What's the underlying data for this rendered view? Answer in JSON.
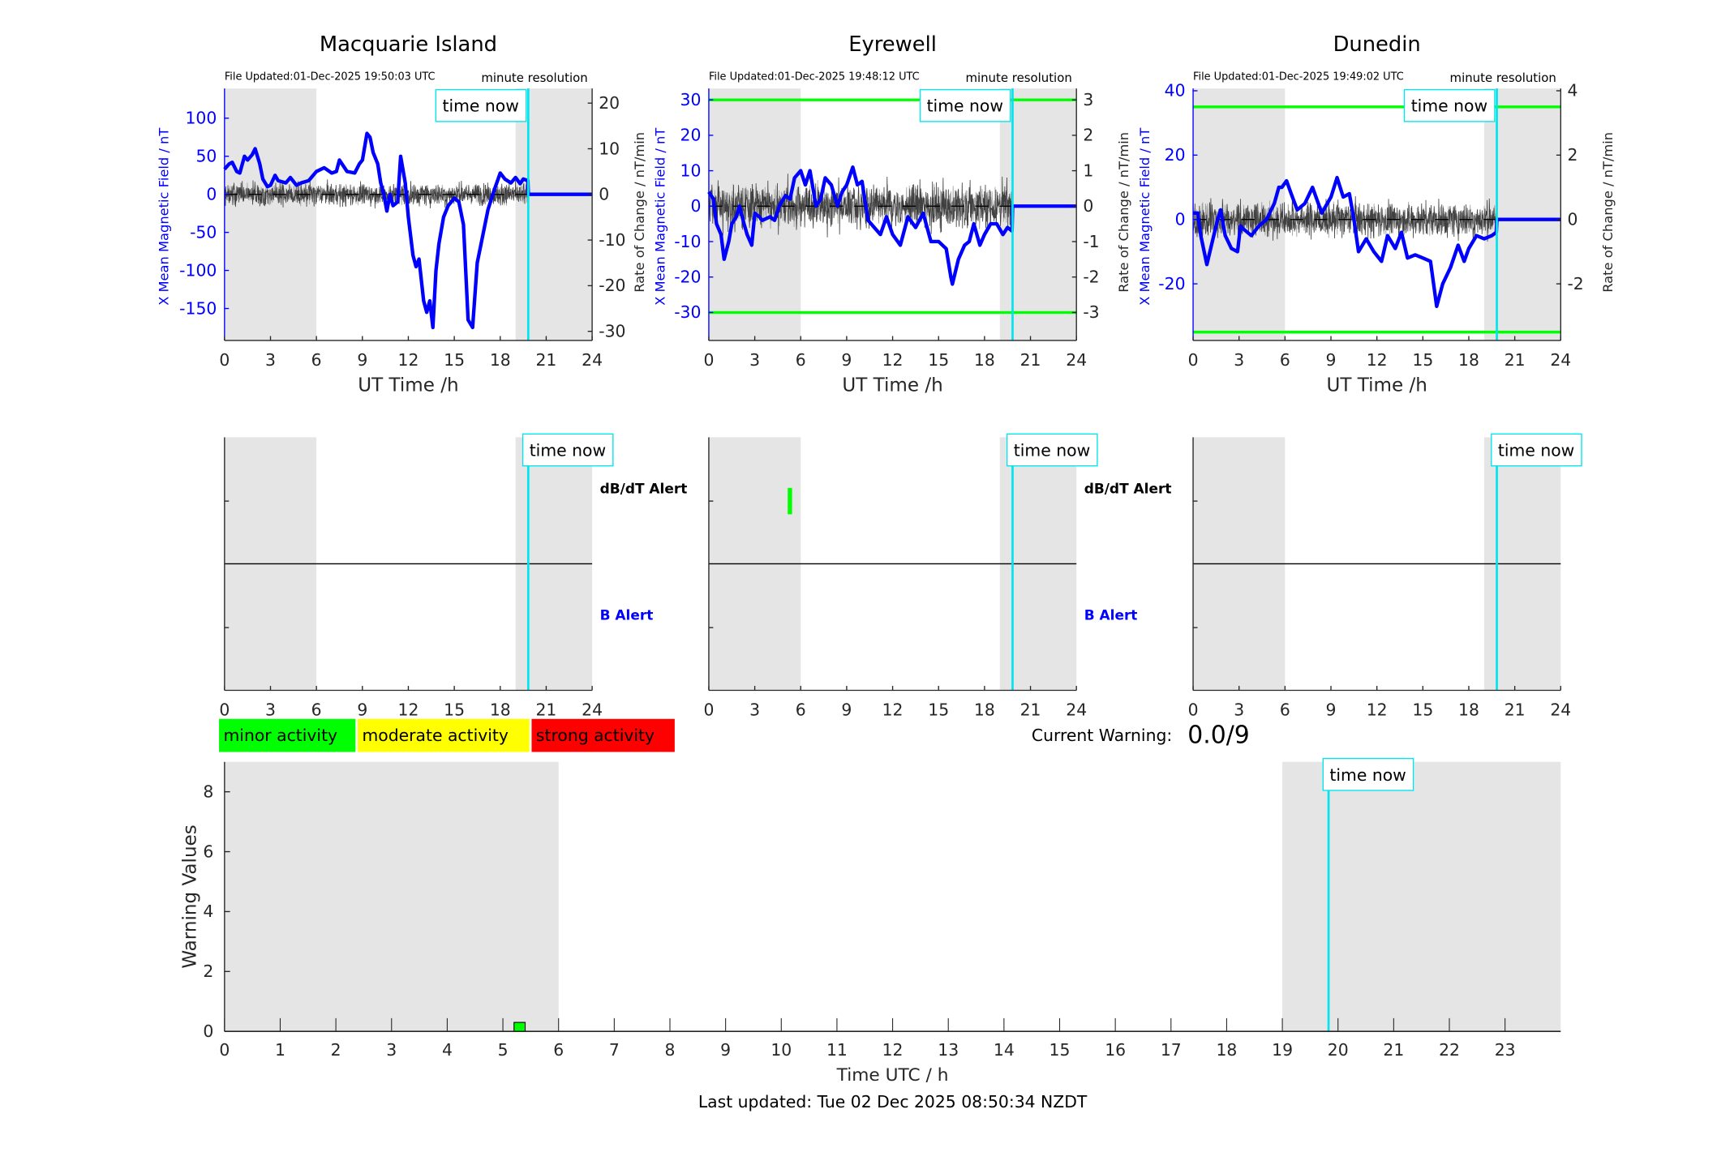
{
  "chart_data": [
    {
      "type": "line",
      "title": "Macquarie Island",
      "file_updated": "File Updated:01-Dec-2025 19:50:03 UTC",
      "resolution": "minute resolution",
      "time_now_label": "time now",
      "time_now": 19.83,
      "xlabel": "UT Time /h",
      "ylabel": "X Mean Magnetic Field / nT",
      "y2label": "Rate of Change / nT/min",
      "xlim": [
        0,
        24
      ],
      "xticks": [
        0,
        3,
        6,
        9,
        12,
        15,
        18,
        21,
        24
      ],
      "ylim": [
        -192,
        139
      ],
      "yticks": [
        -150,
        -100,
        -50,
        0,
        50,
        100
      ],
      "y2lim": [
        -32,
        23.2
      ],
      "y2ticks": [
        -30,
        -20,
        -10,
        0,
        10,
        20
      ],
      "night_shading": [
        [
          0,
          6
        ],
        [
          19,
          24
        ]
      ],
      "thresholds": [],
      "rate_noise_amplitude": 3.2,
      "series": [
        {
          "name": "X Mean Magnetic Field",
          "color": "#0000ff",
          "points": [
            [
              0,
              33
            ],
            [
              0.3,
              40
            ],
            [
              0.5,
              42
            ],
            [
              0.8,
              30
            ],
            [
              1,
              28
            ],
            [
              1.3,
              50
            ],
            [
              1.5,
              45
            ],
            [
              1.8,
              52
            ],
            [
              2,
              60
            ],
            [
              2.3,
              40
            ],
            [
              2.5,
              20
            ],
            [
              2.8,
              10
            ],
            [
              3,
              12
            ],
            [
              3.3,
              25
            ],
            [
              3.5,
              18
            ],
            [
              4,
              15
            ],
            [
              4.3,
              22
            ],
            [
              4.7,
              12
            ],
            [
              5,
              15
            ],
            [
              5.5,
              18
            ],
            [
              6,
              30
            ],
            [
              6.5,
              35
            ],
            [
              7,
              28
            ],
            [
              7.3,
              30
            ],
            [
              7.5,
              45
            ],
            [
              8,
              30
            ],
            [
              8.5,
              28
            ],
            [
              8.8,
              40
            ],
            [
              9,
              45
            ],
            [
              9.3,
              80
            ],
            [
              9.5,
              75
            ],
            [
              9.7,
              55
            ],
            [
              10,
              40
            ],
            [
              10.2,
              15
            ],
            [
              10.4,
              0
            ],
            [
              10.6,
              -22
            ],
            [
              10.8,
              0
            ],
            [
              11,
              -15
            ],
            [
              11.3,
              -10
            ],
            [
              11.5,
              50
            ],
            [
              11.8,
              15
            ],
            [
              12,
              -30
            ],
            [
              12.3,
              -80
            ],
            [
              12.5,
              -95
            ],
            [
              12.7,
              -85
            ],
            [
              13,
              -140
            ],
            [
              13.2,
              -155
            ],
            [
              13.4,
              -140
            ],
            [
              13.6,
              -175
            ],
            [
              13.8,
              -100
            ],
            [
              14,
              -65
            ],
            [
              14.3,
              -30
            ],
            [
              14.6,
              -15
            ],
            [
              15,
              -5
            ],
            [
              15.3,
              -10
            ],
            [
              15.6,
              -40
            ],
            [
              15.9,
              -165
            ],
            [
              16.2,
              -175
            ],
            [
              16.5,
              -90
            ],
            [
              16.8,
              -60
            ],
            [
              17.2,
              -20
            ],
            [
              17.6,
              5
            ],
            [
              18,
              28
            ],
            [
              18.3,
              20
            ],
            [
              18.7,
              15
            ],
            [
              19,
              22
            ],
            [
              19.3,
              14
            ],
            [
              19.5,
              20
            ],
            [
              19.8,
              18
            ],
            [
              19.83,
              0
            ],
            [
              24,
              0
            ]
          ]
        }
      ]
    },
    {
      "type": "line",
      "title": "Eyrewell",
      "file_updated": "File Updated:01-Dec-2025 19:48:12 UTC",
      "resolution": "minute resolution",
      "time_now_label": "time now",
      "time_now": 19.83,
      "xlabel": "UT Time /h",
      "ylabel": "X Mean Magnetic Field / nT",
      "y2label": "Rate of Change / nT/min",
      "xlim": [
        0,
        24
      ],
      "xticks": [
        0,
        3,
        6,
        9,
        12,
        15,
        18,
        21,
        24
      ],
      "ylim": [
        -37.9,
        33.2
      ],
      "yticks": [
        -30,
        -20,
        -10,
        0,
        10,
        20,
        30
      ],
      "y2lim": [
        -3.79,
        3.32
      ],
      "y2ticks": [
        -3,
        -2,
        -1,
        0,
        1,
        2,
        3
      ],
      "night_shading": [
        [
          0,
          6
        ],
        [
          19,
          24
        ]
      ],
      "thresholds": [
        30,
        -30
      ],
      "threshold_color": "#00ff00",
      "rate_noise_amplitude": 0.8,
      "series": [
        {
          "name": "X Mean Magnetic Field",
          "color": "#0000ff",
          "points": [
            [
              0,
              4
            ],
            [
              0.3,
              2
            ],
            [
              0.5,
              -5
            ],
            [
              0.8,
              -8
            ],
            [
              1,
              -15
            ],
            [
              1.3,
              -10
            ],
            [
              1.5,
              -5
            ],
            [
              1.8,
              -3
            ],
            [
              2,
              0
            ],
            [
              2.3,
              -5
            ],
            [
              2.5,
              -8
            ],
            [
              2.8,
              -11
            ],
            [
              3,
              -2
            ],
            [
              3.3,
              -3
            ],
            [
              3.5,
              -4
            ],
            [
              4,
              -3
            ],
            [
              4.3,
              -4
            ],
            [
              4.6,
              0
            ],
            [
              5,
              3
            ],
            [
              5.3,
              2
            ],
            [
              5.6,
              8
            ],
            [
              6,
              10
            ],
            [
              6.3,
              6
            ],
            [
              6.6,
              10
            ],
            [
              7,
              0
            ],
            [
              7.3,
              2
            ],
            [
              7.6,
              8
            ],
            [
              8,
              6
            ],
            [
              8.4,
              0
            ],
            [
              8.7,
              4
            ],
            [
              9,
              6
            ],
            [
              9.4,
              11
            ],
            [
              9.7,
              6
            ],
            [
              10,
              7
            ],
            [
              10.4,
              -4
            ],
            [
              10.8,
              -6
            ],
            [
              11.2,
              -8
            ],
            [
              11.6,
              -3
            ],
            [
              12,
              -8
            ],
            [
              12.5,
              -11
            ],
            [
              13,
              -3
            ],
            [
              13.5,
              -6
            ],
            [
              14,
              -2
            ],
            [
              14.5,
              -10
            ],
            [
              15,
              -10
            ],
            [
              15.5,
              -12
            ],
            [
              15.8,
              -20
            ],
            [
              15.9,
              -22
            ],
            [
              16.3,
              -15
            ],
            [
              16.7,
              -11
            ],
            [
              17,
              -10
            ],
            [
              17.3,
              -5
            ],
            [
              17.7,
              -11
            ],
            [
              18,
              -8
            ],
            [
              18.4,
              -5
            ],
            [
              18.8,
              -5
            ],
            [
              19.2,
              -8
            ],
            [
              19.5,
              -6
            ],
            [
              19.8,
              -7
            ],
            [
              19.83,
              0
            ],
            [
              24,
              0
            ]
          ]
        }
      ]
    },
    {
      "type": "line",
      "title": "Dunedin",
      "file_updated": "File Updated:01-Dec-2025 19:49:02 UTC",
      "resolution": "minute resolution",
      "time_now_label": "time now",
      "time_now": 19.83,
      "xlabel": "UT Time /h",
      "ylabel": "X Mean Magnetic Field / nT",
      "y2label": "Rate of Change / nT/min",
      "xlim": [
        0,
        24
      ],
      "xticks": [
        0,
        3,
        6,
        9,
        12,
        15,
        18,
        21,
        24
      ],
      "ylim": [
        -37.6,
        40.7
      ],
      "yticks": [
        -20,
        0,
        20,
        40
      ],
      "y2lim": [
        -3.76,
        4.07
      ],
      "y2ticks": [
        -2,
        0,
        2,
        4
      ],
      "night_shading": [
        [
          0,
          6
        ],
        [
          19,
          24
        ]
      ],
      "thresholds": [
        35,
        -35
      ],
      "threshold_color": "#00ff00",
      "rate_noise_amplitude": 0.7,
      "series": [
        {
          "name": "X Mean Magnetic Field",
          "color": "#0000ff",
          "points": [
            [
              0,
              2
            ],
            [
              0.3,
              2
            ],
            [
              0.5,
              -5
            ],
            [
              0.9,
              -14
            ],
            [
              1.2,
              -8
            ],
            [
              1.6,
              0
            ],
            [
              1.8,
              3
            ],
            [
              2.1,
              -5
            ],
            [
              2.5,
              -9
            ],
            [
              2.9,
              -10
            ],
            [
              3.1,
              -2
            ],
            [
              3.3,
              -3
            ],
            [
              3.8,
              -5
            ],
            [
              4.3,
              -2
            ],
            [
              4.8,
              0
            ],
            [
              5.3,
              5
            ],
            [
              5.6,
              10
            ],
            [
              5.8,
              10
            ],
            [
              6.1,
              12
            ],
            [
              6.4,
              8
            ],
            [
              6.8,
              3
            ],
            [
              7.3,
              5
            ],
            [
              7.8,
              10
            ],
            [
              8.4,
              2
            ],
            [
              9,
              7
            ],
            [
              9.4,
              13
            ],
            [
              9.8,
              7
            ],
            [
              10.2,
              8
            ],
            [
              10.5,
              0
            ],
            [
              10.8,
              -10
            ],
            [
              11.3,
              -6
            ],
            [
              11.8,
              -10
            ],
            [
              12.3,
              -13
            ],
            [
              12.7,
              -5
            ],
            [
              13.2,
              -9
            ],
            [
              13.6,
              -4
            ],
            [
              14,
              -12
            ],
            [
              14.5,
              -11
            ],
            [
              15,
              -12
            ],
            [
              15.5,
              -13
            ],
            [
              15.9,
              -27
            ],
            [
              16.3,
              -20
            ],
            [
              16.8,
              -15
            ],
            [
              17.3,
              -8
            ],
            [
              17.7,
              -13
            ],
            [
              18,
              -9
            ],
            [
              18.5,
              -5
            ],
            [
              19,
              -6
            ],
            [
              19.5,
              -5
            ],
            [
              19.8,
              -4
            ],
            [
              19.83,
              0
            ],
            [
              24,
              0
            ]
          ]
        }
      ]
    },
    {
      "type": "bar",
      "title": "",
      "time_now_label": "time now",
      "time_now": 19.83,
      "xlim": [
        0,
        24
      ],
      "xticks": [
        0,
        3,
        6,
        9,
        12,
        15,
        18,
        21,
        24
      ],
      "night_shading": [
        [
          0,
          6
        ],
        [
          19,
          24
        ]
      ],
      "db_label": "dB/dT Alert",
      "b_label": "B Alert",
      "db_events": [],
      "b_events": []
    },
    {
      "type": "bar",
      "title": "",
      "time_now_label": "time now",
      "time_now": 19.83,
      "xlim": [
        0,
        24
      ],
      "xticks": [
        0,
        3,
        6,
        9,
        12,
        15,
        18,
        21,
        24
      ],
      "night_shading": [
        [
          0,
          6
        ],
        [
          19,
          24
        ]
      ],
      "db_label": "dB/dT Alert",
      "b_label": "B Alert",
      "db_events": [
        {
          "start": 5.15,
          "end": 5.35,
          "color": "#00ff00"
        }
      ],
      "b_events": []
    },
    {
      "type": "bar",
      "title": "",
      "time_now_label": "time now",
      "time_now": 19.83,
      "xlim": [
        0,
        24
      ],
      "xticks": [
        0,
        3,
        6,
        9,
        12,
        15,
        18,
        21,
        24
      ],
      "night_shading": [
        [
          0,
          6
        ],
        [
          19,
          24
        ]
      ],
      "db_events": [],
      "b_events": []
    },
    {
      "type": "bar",
      "title": "",
      "xlabel": "Time UTC / h",
      "ylabel": "Warning Values",
      "xlim": [
        0,
        24
      ],
      "ylim": [
        0,
        9
      ],
      "xticks": [
        0,
        1,
        2,
        3,
        4,
        5,
        6,
        7,
        8,
        9,
        10,
        11,
        12,
        13,
        14,
        15,
        16,
        17,
        18,
        19,
        20,
        21,
        22,
        23
      ],
      "yticks": [
        0,
        2,
        4,
        6,
        8
      ],
      "night_shading": [
        [
          0,
          6
        ],
        [
          19,
          24
        ]
      ],
      "time_now_label": "time now",
      "time_now": 19.83,
      "bars": [
        {
          "start": 5.2,
          "end": 5.4,
          "value": 0.3,
          "color": "#00ff00"
        }
      ]
    }
  ],
  "legend": [
    {
      "label": "minor activity",
      "color": "#00ff00"
    },
    {
      "label": "moderate activity",
      "color": "#ffff00"
    },
    {
      "label": "strong activity",
      "color": "#ff0000"
    }
  ],
  "current_warning": {
    "label": "Current Warning:",
    "value": "0.0/9"
  },
  "footer": "Last updated: Tue 02 Dec 2025 08:50:34 NZDT",
  "colors": {
    "night": "#e5e5e5",
    "time_now": "#00e5ee",
    "field": "#0000ff",
    "axis": "#262626"
  }
}
